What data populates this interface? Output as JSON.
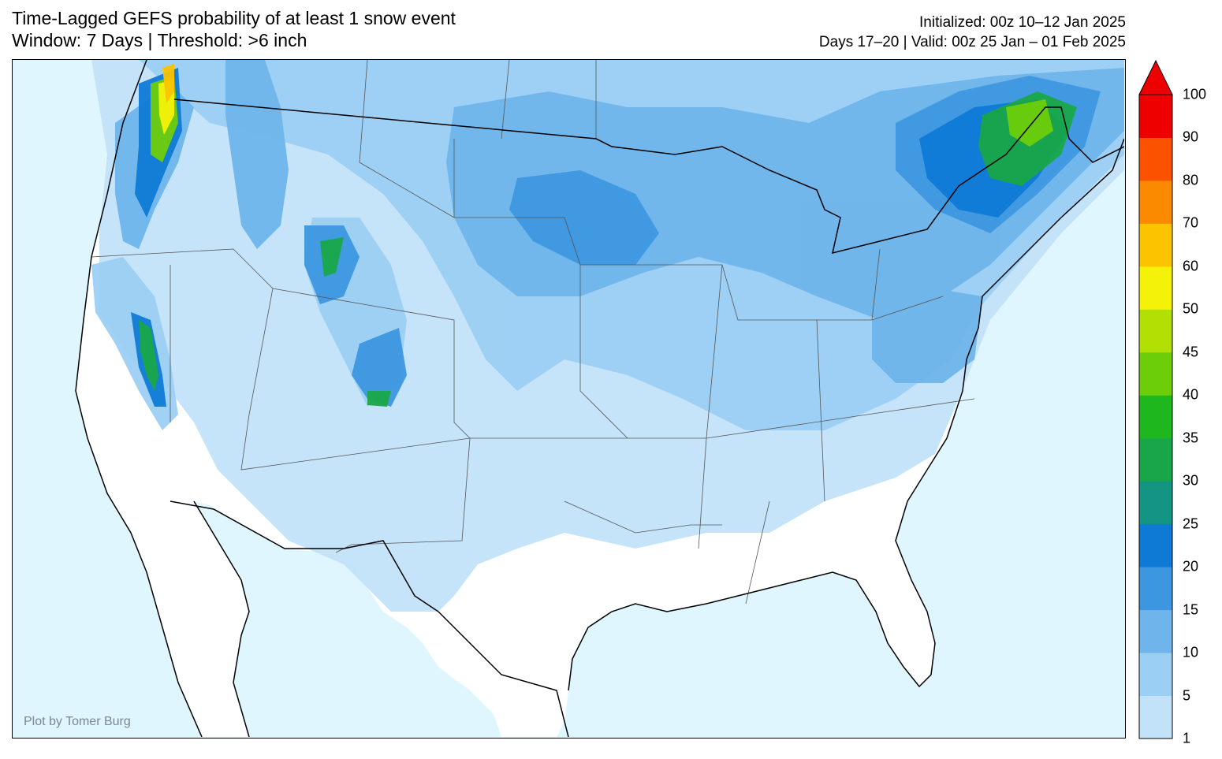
{
  "header": {
    "title_line1": "Time-Lagged GEFS probability of at least 1 snow event",
    "title_line2": "Window: 7 Days | Threshold: >6 inch",
    "initialized": "Initialized: 00z 10–12 Jan 2025",
    "valid": "Days 17–20 | Valid: 00z 25 Jan – 01 Feb 2025"
  },
  "credit": "Plot by Tomer Burg",
  "colorbar": {
    "ticks": [
      "1",
      "5",
      "10",
      "15",
      "20",
      "25",
      "30",
      "35",
      "40",
      "45",
      "50",
      "60",
      "70",
      "80",
      "90",
      "100"
    ],
    "colors": [
      "#c2e2f9",
      "#9ccff4",
      "#6fb5eb",
      "#3d97e0",
      "#0f7ad6",
      "#149483",
      "#19a648",
      "#1eb71e",
      "#6ecd09",
      "#b2df04",
      "#f5f20a",
      "#fbc300",
      "#fb8a00",
      "#fb5200",
      "#ee0000"
    ],
    "extend_color": "#ee0000"
  },
  "map": {
    "ocean_color": "#dff6ff",
    "land_color": "#ffffff"
  }
}
